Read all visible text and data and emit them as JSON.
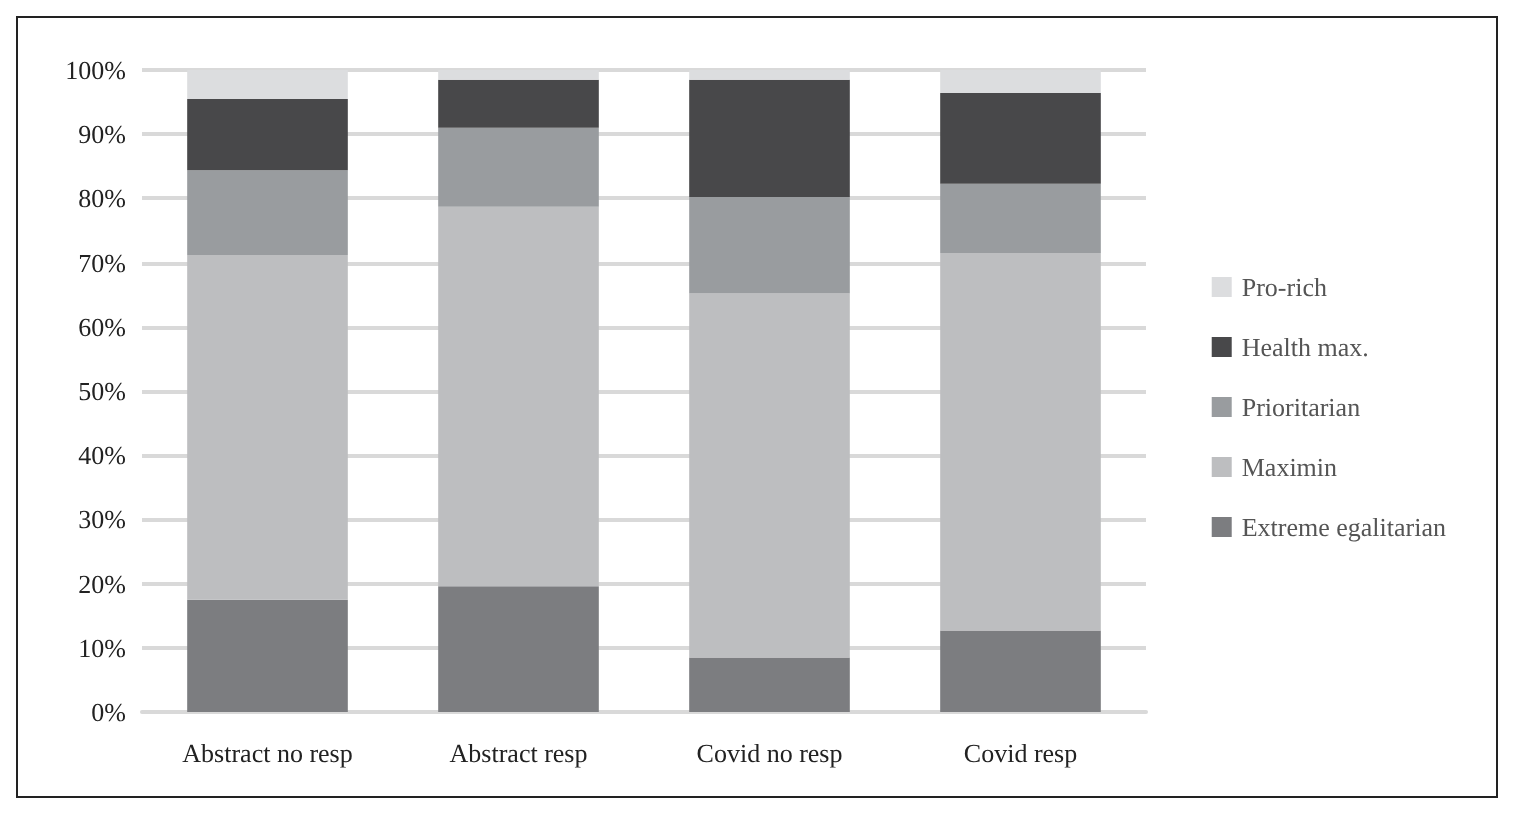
{
  "chart_data": {
    "type": "bar",
    "stacked": true,
    "categories": [
      "Abstract no resp",
      "Abstract resp",
      "Covid no resp",
      "Covid resp"
    ],
    "series": [
      {
        "name": "Extreme egalitarian",
        "color": "#7c7d80",
        "values": [
          17.5,
          19.6,
          8.5,
          12.7
        ]
      },
      {
        "name": "Maximin",
        "color": "#bdbec0",
        "values": [
          53.7,
          59.1,
          56.7,
          58.8
        ]
      },
      {
        "name": "Prioritarian",
        "color": "#999c9f",
        "values": [
          13.2,
          12.3,
          15,
          10.8
        ]
      },
      {
        "name": "Health max.",
        "color": "#48484a",
        "values": [
          11.1,
          7.5,
          18.3,
          14.1
        ]
      },
      {
        "name": "Pro-rich",
        "color": "#dcdddf",
        "values": [
          4.5,
          1.5,
          1.5,
          3.6
        ]
      }
    ],
    "ylim": [
      0,
      100
    ],
    "yticks": [
      {
        "value": 0,
        "label": "0%"
      },
      {
        "value": 10,
        "label": "10%"
      },
      {
        "value": 20,
        "label": "20%"
      },
      {
        "value": 30,
        "label": "30%"
      },
      {
        "value": 40,
        "label": "40%"
      },
      {
        "value": 50,
        "label": "50%"
      },
      {
        "value": 60,
        "label": "60%"
      },
      {
        "value": 70,
        "label": "70%"
      },
      {
        "value": 80,
        "label": "80%"
      },
      {
        "value": 90,
        "label": "90%"
      },
      {
        "value": 100,
        "label": "100%"
      }
    ],
    "grid": "y",
    "legend": "right"
  }
}
